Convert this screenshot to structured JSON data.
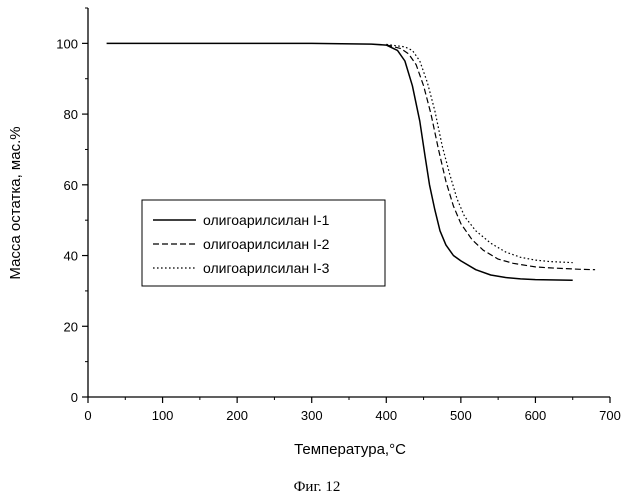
{
  "chart_data": {
    "type": "line",
    "xlabel": "Температура,°С",
    "ylabel": "Масса остатка, мас.%",
    "xlim": [
      0,
      700
    ],
    "ylim": [
      0,
      110
    ],
    "xticks": [
      "0",
      "100",
      "200",
      "300",
      "400",
      "500",
      "600",
      "700"
    ],
    "yticks": [
      "0",
      "20",
      "40",
      "60",
      "80",
      "100"
    ],
    "grid": false,
    "legend_placement": "center-left",
    "series": [
      {
        "name": "олигоарилсилан I-1",
        "style": "solid",
        "points": [
          [
            25,
            100
          ],
          [
            100,
            100
          ],
          [
            200,
            100
          ],
          [
            300,
            100
          ],
          [
            380,
            99.8
          ],
          [
            400,
            99.5
          ],
          [
            415,
            98
          ],
          [
            425,
            95
          ],
          [
            435,
            88
          ],
          [
            445,
            78
          ],
          [
            452,
            68
          ],
          [
            458,
            60
          ],
          [
            465,
            53
          ],
          [
            472,
            47
          ],
          [
            480,
            43
          ],
          [
            490,
            40
          ],
          [
            500,
            38.5
          ],
          [
            520,
            36
          ],
          [
            540,
            34.5
          ],
          [
            560,
            33.8
          ],
          [
            580,
            33.4
          ],
          [
            600,
            33.2
          ],
          [
            620,
            33.1
          ],
          [
            650,
            33
          ]
        ]
      },
      {
        "name": "олигоарилсилан I-2",
        "style": "dashed",
        "points": [
          [
            400,
            99.6
          ],
          [
            420,
            98.5
          ],
          [
            430,
            97
          ],
          [
            440,
            94
          ],
          [
            450,
            88
          ],
          [
            460,
            80
          ],
          [
            470,
            70
          ],
          [
            480,
            61
          ],
          [
            490,
            54
          ],
          [
            500,
            49
          ],
          [
            515,
            44.5
          ],
          [
            530,
            41.5
          ],
          [
            550,
            39
          ],
          [
            570,
            37.8
          ],
          [
            600,
            36.8
          ],
          [
            620,
            36.5
          ],
          [
            640,
            36.3
          ],
          [
            660,
            36.1
          ],
          [
            680,
            36
          ]
        ]
      },
      {
        "name": "олигоарилсилан I-3",
        "style": "dotted",
        "points": [
          [
            400,
            99.7
          ],
          [
            425,
            99
          ],
          [
            435,
            98
          ],
          [
            445,
            95
          ],
          [
            455,
            89
          ],
          [
            465,
            81
          ],
          [
            475,
            71
          ],
          [
            485,
            63
          ],
          [
            495,
            56
          ],
          [
            505,
            51
          ],
          [
            520,
            47
          ],
          [
            540,
            43.5
          ],
          [
            560,
            41
          ],
          [
            580,
            39.5
          ],
          [
            600,
            38.7
          ],
          [
            620,
            38.3
          ],
          [
            640,
            38.1
          ],
          [
            650,
            38
          ]
        ]
      }
    ]
  },
  "caption": "Фиг. 12"
}
